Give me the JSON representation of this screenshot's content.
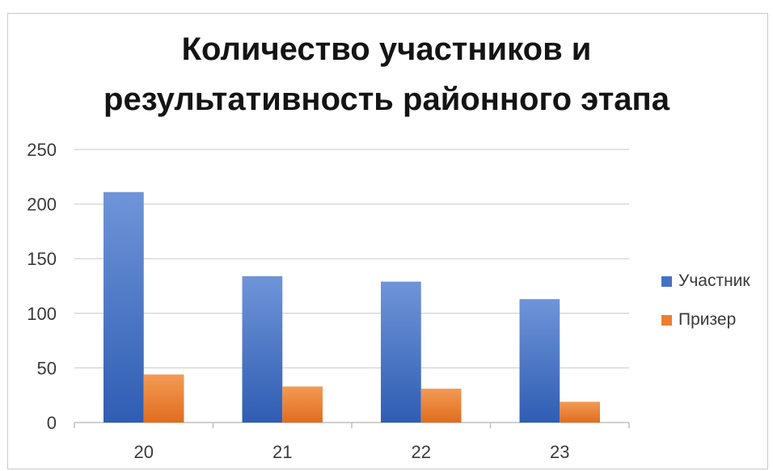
{
  "chart_data": {
    "type": "bar",
    "title": [
      "Количество участников и",
      "результативность районного этапа"
    ],
    "categories": [
      "20",
      "21",
      "22",
      "23"
    ],
    "series": [
      {
        "name": "Участник",
        "values": [
          211,
          134,
          129,
          113
        ],
        "color": "#4472c4"
      },
      {
        "name": "Призер",
        "values": [
          44,
          33,
          31,
          19
        ],
        "color": "#ed7d31"
      }
    ],
    "ylim": [
      0,
      250
    ],
    "yticks": [
      0,
      50,
      100,
      150,
      200,
      250
    ],
    "grid": true,
    "legend_position": "right"
  }
}
